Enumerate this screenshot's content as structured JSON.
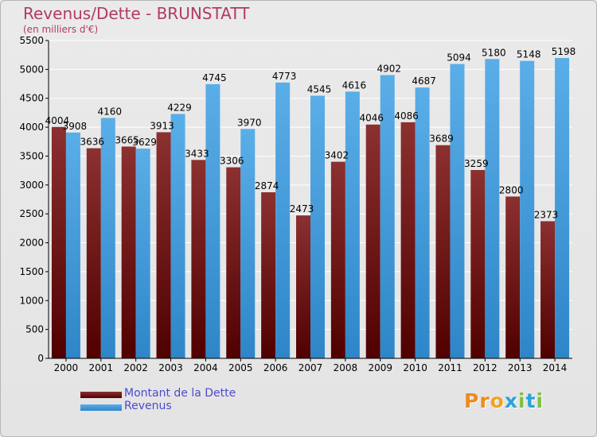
{
  "title": "Revenus/Dette - BRUNSTATT",
  "subtitle": "(en milliers d'€)",
  "logo": {
    "text": "Proxiti",
    "letter_colors": [
      "#f08a1c",
      "#f08a1c",
      "#f0a41c",
      "#2aa3d8",
      "#7cc142",
      "#2aa3d8",
      "#7cc142"
    ]
  },
  "colors": {
    "debt_top": "#8c3030",
    "debt_bottom": "#500000",
    "revenue_top": "#5aaee8",
    "revenue_bottom": "#2e86c8",
    "grid": "#ffffff",
    "axis": "#000000"
  },
  "chart_data": {
    "type": "bar",
    "title": "Revenus/Dette - BRUNSTATT",
    "subtitle": "(en milliers d'€)",
    "categories": [
      "2000",
      "2001",
      "2002",
      "2003",
      "2004",
      "2005",
      "2006",
      "2007",
      "2008",
      "2009",
      "2010",
      "2011",
      "2012",
      "2013",
      "2014"
    ],
    "series": [
      {
        "name": "Montant de la Dette",
        "values": [
          4004,
          3636,
          3665,
          3913,
          3433,
          3306,
          2874,
          2473,
          3402,
          4046,
          4086,
          3689,
          3259,
          2800,
          2373
        ],
        "labels": [
          "4004",
          "3636",
          "3665",
          "3913",
          "3433",
          "3306",
          "2874",
          "2473",
          "3402",
          "4046",
          "4086",
          "3689",
          "3259",
          "2800",
          "2373"
        ]
      },
      {
        "name": "Revenus",
        "values": [
          3908,
          4160,
          3629,
          4229,
          4745,
          3970,
          4773,
          4545,
          4616,
          4902,
          4687,
          5094,
          5180,
          5148,
          5198
        ],
        "labels": [
          "3908",
          "4160",
          "3629",
          "4229",
          "4745",
          "3970",
          "4773",
          "4545",
          "4616",
          "4902",
          "4687",
          "5094",
          "5180",
          "5148",
          "5198"
        ]
      }
    ],
    "ylim": [
      0,
      5500
    ],
    "yticks": [
      0,
      500,
      1000,
      1500,
      2000,
      2500,
      3000,
      3500,
      4000,
      4500,
      5000,
      5500
    ],
    "grid": true,
    "legend_position": "bottom-left"
  }
}
